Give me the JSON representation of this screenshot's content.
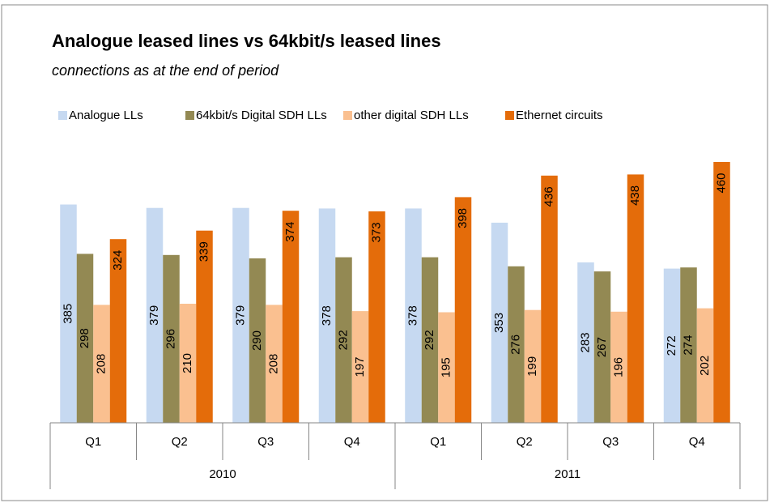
{
  "chart_data": {
    "type": "bar",
    "title": "Analogue leased lines vs 64kbit/s leased lines",
    "subtitle": "connections as at the end of period",
    "categories": [
      "Q1",
      "Q2",
      "Q3",
      "Q4",
      "Q1",
      "Q2",
      "Q3",
      "Q4"
    ],
    "groups": [
      "2010",
      "2011"
    ],
    "series": [
      {
        "name": "Analogue LLs",
        "color": "#c6d9f1",
        "label_position": "center",
        "values": [
          385,
          379,
          379,
          378,
          378,
          353,
          283,
          272
        ]
      },
      {
        "name": "64kbit/s Digital SDH LLs",
        "color": "#938953",
        "label_position": "center",
        "values": [
          298,
          296,
          290,
          292,
          292,
          276,
          267,
          274
        ]
      },
      {
        "name": "other digital SDH LLs",
        "color": "#fac090",
        "label_position": "center",
        "values": [
          208,
          210,
          208,
          197,
          195,
          199,
          196,
          202
        ]
      },
      {
        "name": "Ethernet circuits",
        "color": "#e46c0a",
        "label_position": "inside-end",
        "values": [
          324,
          339,
          374,
          373,
          398,
          436,
          438,
          460
        ]
      }
    ],
    "ylim": [
      0,
      500
    ],
    "legend": "top"
  }
}
